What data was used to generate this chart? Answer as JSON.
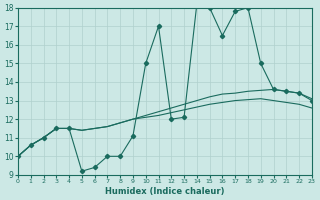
{
  "xlabel": "Humidex (Indice chaleur)",
  "xlim": [
    0,
    23
  ],
  "ylim": [
    9,
    18
  ],
  "xticks": [
    0,
    1,
    2,
    3,
    4,
    5,
    6,
    7,
    8,
    9,
    10,
    11,
    12,
    13,
    14,
    15,
    16,
    17,
    18,
    19,
    20,
    21,
    22,
    23
  ],
  "yticks": [
    9,
    10,
    11,
    12,
    13,
    14,
    15,
    16,
    17,
    18
  ],
  "bg_color": "#cce8e5",
  "line_color": "#1a6b5e",
  "grid_color": "#b0d0cd",
  "line1_x": [
    0,
    1,
    2,
    3,
    4,
    5,
    6,
    7,
    8,
    9,
    10,
    11,
    12,
    13,
    14,
    15,
    16,
    17,
    18,
    19,
    20,
    21,
    22,
    23
  ],
  "line1_y": [
    10.0,
    10.6,
    11.0,
    11.5,
    11.5,
    9.2,
    9.4,
    10.0,
    10.0,
    11.1,
    15.0,
    17.0,
    12.0,
    12.1,
    18.2,
    18.0,
    16.5,
    17.8,
    18.0,
    15.0,
    13.6,
    13.5,
    13.4,
    13.0
  ],
  "line2_x": [
    0,
    1,
    2,
    3,
    4,
    5,
    6,
    7,
    8,
    9,
    10,
    11,
    12,
    13,
    14,
    15,
    16,
    17,
    18,
    19,
    20,
    21,
    22,
    23
  ],
  "line2_y": [
    10.0,
    10.6,
    11.0,
    11.5,
    11.5,
    11.4,
    11.5,
    11.6,
    11.8,
    12.0,
    12.2,
    12.4,
    12.6,
    12.8,
    13.0,
    13.2,
    13.35,
    13.4,
    13.5,
    13.55,
    13.6,
    13.5,
    13.4,
    13.1
  ],
  "line3_x": [
    0,
    1,
    2,
    3,
    4,
    5,
    6,
    7,
    8,
    9,
    10,
    11,
    12,
    13,
    14,
    15,
    16,
    17,
    18,
    19,
    20,
    21,
    22,
    23
  ],
  "line3_y": [
    10.0,
    10.6,
    11.0,
    11.5,
    11.5,
    11.4,
    11.5,
    11.6,
    11.8,
    12.0,
    12.1,
    12.2,
    12.35,
    12.5,
    12.65,
    12.8,
    12.9,
    13.0,
    13.05,
    13.1,
    13.0,
    12.9,
    12.8,
    12.6
  ]
}
